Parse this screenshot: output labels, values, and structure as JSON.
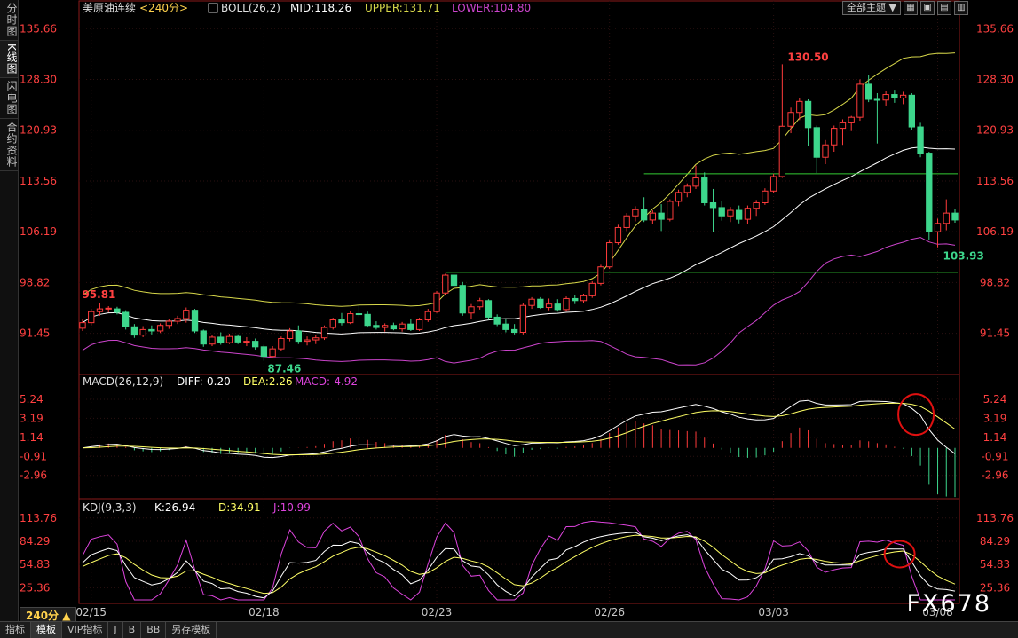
{
  "sidebar": {
    "tabs": [
      "分时图",
      "K线图",
      "闪电图",
      "合约资料"
    ],
    "active": 1
  },
  "toolbar": {
    "theme_label": "全部主题",
    "theme_arrow": "▼",
    "buttons": [
      "▦",
      "▣",
      "▤",
      "▥"
    ]
  },
  "main_panel": {
    "title": "美原油连续",
    "period": "<240分>",
    "indicator_icon": "chart-box-icon",
    "boll_label": "BOLL(26,2)",
    "mid_label": "MID:118.26",
    "upper_label": "UPPER:131.71",
    "lower_label": "LOWER:104.80",
    "price_ticks": [
      "135.66",
      "128.30",
      "120.93",
      "113.56",
      "106.19",
      "98.82",
      "91.45"
    ],
    "annotations": {
      "high_1": "95.81",
      "low_1": "87.46",
      "high_2": "130.50",
      "low_2": "103.93"
    }
  },
  "macd_panel": {
    "label": "MACD(26,12,9)",
    "diff": "DIFF:-0.20",
    "dea": "DEA:2.26",
    "macd": "MACD:-4.92",
    "ticks": [
      "5.24",
      "3.19",
      "1.14",
      "-0.91",
      "-2.96"
    ]
  },
  "kdj_panel": {
    "label": "KDJ(9,3,3)",
    "k": "K:26.94",
    "d": "D:34.91",
    "j": "J:10.99",
    "ticks": [
      "113.76",
      "84.29",
      "54.83",
      "25.36"
    ]
  },
  "x_axis": {
    "dates": [
      "02/15",
      "02/18",
      "02/23",
      "02/26",
      "03/03",
      "03/08"
    ]
  },
  "period_badge": "240分 ▲",
  "bottom_tabs": [
    "指标",
    "模板",
    "VIP指标",
    "J",
    "B",
    "BB",
    "另存模板"
  ],
  "bottom_active": 1,
  "watermark": "FX678",
  "colors": {
    "up": "#ff3b3b",
    "down": "#3dd68c",
    "mid": "#ffffff",
    "upper": "#d8d84a",
    "lower": "#cc44cc",
    "diff": "#ffffff",
    "dea": "#ffff66",
    "k": "#ffffff",
    "d": "#ffff66",
    "j": "#dd44dd",
    "level": "#33cc33",
    "label_red": "#ff4040",
    "label_green": "#3dd68c",
    "circle": "#e01010"
  },
  "chart_data": {
    "type": "candlestick",
    "candles": [
      [
        92.2,
        93.5,
        91.8,
        93.0
      ],
      [
        93.0,
        95.0,
        92.6,
        94.6
      ],
      [
        94.6,
        95.81,
        94.0,
        95.0
      ],
      [
        95.0,
        95.4,
        94.5,
        95.1
      ],
      [
        95.0,
        95.3,
        94.2,
        94.5
      ],
      [
        94.5,
        94.8,
        92.0,
        92.4
      ],
      [
        92.4,
        92.8,
        90.8,
        91.2
      ],
      [
        91.2,
        92.5,
        90.9,
        92.0
      ],
      [
        92.0,
        92.6,
        91.3,
        91.8
      ],
      [
        91.8,
        92.9,
        91.5,
        92.6
      ],
      [
        92.6,
        93.5,
        92.1,
        93.2
      ],
      [
        93.2,
        94.0,
        92.8,
        93.6
      ],
      [
        93.6,
        95.2,
        93.0,
        94.8
      ],
      [
        94.8,
        95.0,
        91.5,
        91.8
      ],
      [
        91.8,
        92.0,
        89.5,
        89.9
      ],
      [
        89.9,
        91.2,
        89.6,
        90.9
      ],
      [
        90.9,
        91.6,
        89.8,
        90.1
      ],
      [
        90.1,
        91.4,
        89.9,
        91.0
      ],
      [
        91.0,
        91.3,
        89.9,
        90.2
      ],
      [
        90.2,
        90.9,
        89.6,
        90.3
      ],
      [
        90.3,
        90.7,
        89.1,
        89.5
      ],
      [
        89.5,
        89.8,
        87.46,
        88.1
      ],
      [
        88.1,
        89.6,
        87.8,
        89.2
      ],
      [
        89.2,
        91.0,
        88.9,
        90.7
      ],
      [
        90.7,
        92.2,
        90.3,
        91.8
      ],
      [
        91.8,
        92.6,
        89.9,
        90.3
      ],
      [
        90.3,
        91.0,
        89.7,
        90.5
      ],
      [
        90.5,
        91.2,
        89.9,
        90.8
      ],
      [
        90.8,
        92.6,
        90.5,
        92.3
      ],
      [
        92.3,
        93.7,
        92.0,
        93.4
      ],
      [
        93.4,
        94.4,
        92.6,
        93.0
      ],
      [
        93.0,
        94.7,
        92.8,
        94.3
      ],
      [
        94.3,
        95.6,
        93.8,
        94.2
      ],
      [
        94.2,
        94.6,
        92.3,
        92.6
      ],
      [
        92.6,
        93.2,
        92.0,
        92.3
      ],
      [
        92.3,
        92.9,
        91.7,
        92.6
      ],
      [
        92.6,
        93.0,
        91.9,
        92.1
      ],
      [
        92.1,
        93.1,
        91.7,
        92.8
      ],
      [
        92.8,
        93.6,
        91.8,
        92.0
      ],
      [
        92.0,
        93.7,
        91.8,
        93.4
      ],
      [
        93.4,
        95.0,
        93.1,
        94.6
      ],
      [
        94.6,
        97.6,
        94.4,
        97.3
      ],
      [
        97.3,
        100.1,
        97.0,
        99.9
      ],
      [
        99.9,
        100.8,
        98.0,
        98.4
      ],
      [
        98.4,
        98.9,
        94.0,
        94.4
      ],
      [
        94.4,
        95.7,
        93.5,
        95.3
      ],
      [
        95.3,
        96.6,
        94.9,
        96.2
      ],
      [
        96.2,
        96.4,
        93.4,
        93.8
      ],
      [
        93.8,
        94.2,
        92.5,
        92.8
      ],
      [
        92.8,
        93.5,
        91.6,
        92.0
      ],
      [
        92.0,
        92.8,
        91.3,
        91.6
      ],
      [
        91.6,
        95.9,
        91.3,
        95.5
      ],
      [
        95.5,
        96.7,
        95.0,
        96.4
      ],
      [
        96.4,
        96.7,
        95.0,
        95.2
      ],
      [
        95.2,
        96.5,
        94.8,
        95.7
      ],
      [
        95.7,
        96.4,
        94.6,
        94.9
      ],
      [
        94.9,
        96.8,
        94.6,
        96.5
      ],
      [
        96.5,
        97.0,
        95.7,
        96.2
      ],
      [
        96.2,
        97.2,
        95.9,
        96.9
      ],
      [
        96.9,
        99.0,
        96.6,
        98.7
      ],
      [
        98.7,
        101.4,
        98.4,
        101.1
      ],
      [
        101.1,
        104.9,
        100.8,
        104.6
      ],
      [
        104.6,
        107.2,
        104.3,
        106.8
      ],
      [
        106.8,
        108.9,
        106.3,
        108.5
      ],
      [
        108.5,
        109.9,
        107.7,
        109.4
      ],
      [
        109.4,
        111.2,
        107.6,
        107.9
      ],
      [
        107.9,
        109.3,
        107.3,
        108.9
      ],
      [
        108.9,
        110.2,
        106.3,
        108.0
      ],
      [
        108.0,
        110.9,
        107.7,
        110.6
      ],
      [
        110.6,
        112.3,
        109.9,
        111.9
      ],
      [
        111.9,
        113.2,
        111.2,
        112.8
      ],
      [
        112.8,
        115.8,
        112.4,
        114.0
      ],
      [
        114.0,
        114.8,
        110.0,
        110.4
      ],
      [
        110.4,
        112.4,
        106.2,
        109.7
      ],
      [
        109.7,
        110.6,
        107.8,
        108.5
      ],
      [
        108.5,
        109.8,
        107.6,
        109.3
      ],
      [
        109.3,
        110.0,
        107.4,
        108.0
      ],
      [
        108.0,
        110.0,
        107.3,
        109.6
      ],
      [
        109.6,
        110.8,
        108.5,
        110.4
      ],
      [
        110.4,
        112.5,
        110.1,
        112.1
      ],
      [
        112.1,
        114.6,
        111.8,
        114.2
      ],
      [
        114.2,
        130.5,
        114.0,
        121.5
      ],
      [
        121.5,
        124.2,
        120.5,
        123.5
      ],
      [
        123.5,
        125.6,
        122.4,
        125.1
      ],
      [
        125.1,
        125.4,
        118.6,
        121.3
      ],
      [
        121.3,
        121.6,
        114.7,
        117.0
      ],
      [
        117.0,
        119.5,
        116.0,
        118.8
      ],
      [
        118.8,
        121.6,
        117.8,
        121.2
      ],
      [
        121.2,
        122.5,
        118.8,
        122.0
      ],
      [
        122.0,
        123.0,
        120.8,
        122.8
      ],
      [
        122.8,
        128.3,
        122.3,
        127.6
      ],
      [
        127.6,
        128.9,
        125.0,
        125.4
      ],
      [
        125.4,
        126.3,
        119.0,
        125.3
      ],
      [
        125.3,
        126.6,
        124.5,
        126.1
      ],
      [
        126.1,
        126.8,
        124.9,
        125.6
      ],
      [
        125.6,
        126.5,
        124.7,
        126.0
      ],
      [
        126.0,
        126.3,
        121.0,
        121.4
      ],
      [
        121.4,
        122.0,
        117.0,
        117.6
      ],
      [
        117.6,
        117.8,
        105.0,
        106.2
      ],
      [
        106.2,
        108.1,
        103.93,
        107.4
      ],
      [
        107.4,
        110.9,
        106.4,
        108.9
      ],
      [
        108.9,
        109.5,
        107.5,
        107.9
      ]
    ],
    "upper_ticks": [
      135.66,
      128.3,
      120.93,
      113.56,
      106.19,
      98.82,
      91.45
    ],
    "ylim": [
      86.0,
      137.5
    ],
    "macd_ylim": [
      -4.9,
      6.0
    ],
    "kdj_ylim": [
      10,
      118
    ],
    "level_lines": [
      {
        "value": 114.6,
        "from_index": 65,
        "to_index": 102
      },
      {
        "value": 100.3,
        "from_index": 42,
        "to_index": 102
      }
    ]
  }
}
